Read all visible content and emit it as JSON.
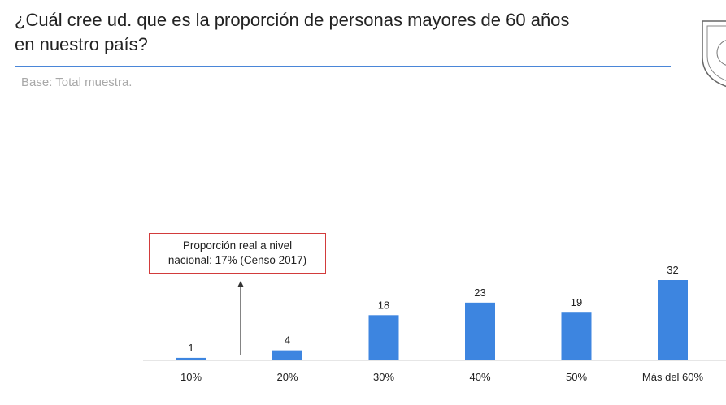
{
  "slide": {
    "title": "¿Cuál cree ud. que es la proporción de personas mayores de 60 años en nuestro país?",
    "base_note": "Base: Total muestra.",
    "accent_color": "#4a86d8"
  },
  "logo": {
    "icon": "university-seal-icon"
  },
  "annotation": {
    "line1": "Proporción real a nivel",
    "line2": "nacional: 17% (Censo 2017)",
    "border_color": "#d23b3b"
  },
  "chart_data": {
    "type": "bar",
    "title": "¿Cuál cree ud. que es la proporción de personas mayores de 60 años en nuestro país?",
    "categories": [
      "10%",
      "20%",
      "30%",
      "40%",
      "50%",
      "Más del 60%"
    ],
    "values": [
      1,
      4,
      18,
      23,
      19,
      32
    ],
    "xlabel": "",
    "ylabel": "",
    "ylim": [
      0,
      32
    ],
    "grid": false,
    "bar_color": "#3d85e0"
  }
}
